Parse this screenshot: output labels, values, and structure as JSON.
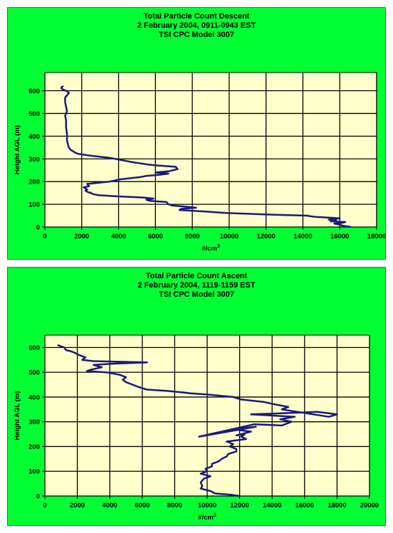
{
  "page": {
    "background": "#ffffff"
  },
  "colors": {
    "panel_bg": "#00ff33",
    "plot_bg": "#ffffcc",
    "grid": "#000000",
    "line": "#1a1a7a"
  },
  "chart_data": [
    {
      "type": "line",
      "title": "Total Particle Count Descent",
      "subtitle1": "2 February 2004, 0911-0943 EST",
      "subtitle2": "TSI CPC Model 3007",
      "xlabel": "#/cm",
      "xlabel_sup": "3",
      "ylabel": "Height AGL (m)",
      "xlim": [
        0,
        18000
      ],
      "ylim": [
        0,
        680
      ],
      "xticks": [
        0,
        2000,
        4000,
        6000,
        8000,
        10000,
        12000,
        14000,
        16000,
        18000
      ],
      "yticks": [
        0,
        100,
        200,
        300,
        400,
        500,
        600
      ],
      "grid": true,
      "series": [
        {
          "x": [
            16600,
            16200,
            16000,
            15700,
            16100,
            16300,
            15500,
            15800,
            15400,
            16000,
            15700,
            14600,
            14200,
            12000,
            9800,
            8700,
            7300,
            7400,
            8200,
            7300,
            6900,
            6700,
            6600,
            5700,
            5500,
            5900,
            5600,
            5300,
            3900,
            2900,
            2600,
            2500,
            2400,
            2300,
            2200,
            2300,
            2200,
            2100,
            2400,
            2300,
            3500,
            4100,
            5200,
            5500,
            6200,
            6700,
            6000,
            6700,
            7200,
            7100,
            6200,
            5600,
            4800,
            3500,
            2400,
            1800,
            1600,
            1400,
            1300,
            1200,
            1200,
            1150,
            1150,
            1100,
            1200,
            1150,
            1100,
            1100,
            1200,
            1300,
            1200,
            1000,
            900,
            900,
            1000
          ],
          "y": [
            0,
            5,
            10,
            15,
            18,
            22,
            25,
            30,
            33,
            38,
            40,
            45,
            50,
            55,
            62,
            68,
            75,
            80,
            85,
            92,
            95,
            100,
            110,
            115,
            120,
            125,
            128,
            130,
            135,
            140,
            145,
            150,
            152,
            155,
            160,
            165,
            170,
            175,
            180,
            190,
            200,
            210,
            220,
            225,
            230,
            235,
            240,
            245,
            255,
            265,
            270,
            275,
            285,
            305,
            315,
            322,
            330,
            340,
            350,
            380,
            410,
            440,
            470,
            490,
            510,
            530,
            550,
            570,
            580,
            590,
            598,
            605,
            610,
            615,
            620
          ]
        }
      ]
    },
    {
      "type": "line",
      "title": "Total Particle Count Ascent",
      "subtitle1": "2 February 2004, 1119-1159 EST",
      "subtitle2": "TSI CPC Model 3007",
      "xlabel": "#/cm",
      "xlabel_sup": "3",
      "ylabel": "Height AGL (m)",
      "xlim": [
        0,
        20000
      ],
      "ylim": [
        0,
        650
      ],
      "xticks": [
        0,
        2000,
        4000,
        6000,
        8000,
        10000,
        12000,
        14000,
        16000,
        18000,
        20000
      ],
      "yticks": [
        0,
        100,
        200,
        300,
        400,
        500,
        600
      ],
      "grid": true,
      "series": [
        {
          "x": [
            12000,
            11500,
            10500,
            10200,
            9600,
            9700,
            9600,
            9800,
            10200,
            9600,
            10000,
            9900,
            10300,
            10300,
            10700,
            10900,
            11200,
            11300,
            11800,
            11800,
            11400,
            11600,
            11200,
            12400,
            12100,
            12300,
            11800,
            12700,
            11600,
            13000,
            9500,
            12900,
            14600,
            15200,
            14500,
            15400,
            12700,
            14900,
            16800,
            18000,
            17500,
            14600,
            15000,
            14200,
            13500,
            12100,
            11600,
            10000,
            9000,
            8300,
            7500,
            6300,
            5800,
            5400,
            5000,
            4800,
            5000,
            4600,
            3800,
            2600,
            2800,
            3500,
            3000,
            4300,
            6300,
            3000,
            2300,
            2500,
            2100,
            1800,
            1600,
            1300,
            1200,
            800
          ],
          "y": [
            0,
            5,
            10,
            20,
            30,
            40,
            55,
            70,
            80,
            90,
            100,
            110,
            120,
            130,
            140,
            150,
            160,
            170,
            180,
            190,
            200,
            210,
            220,
            230,
            240,
            250,
            245,
            260,
            270,
            280,
            240,
            290,
            285,
            300,
            310,
            320,
            330,
            335,
            340,
            330,
            320,
            350,
            360,
            370,
            380,
            390,
            400,
            410,
            415,
            420,
            425,
            430,
            440,
            450,
            460,
            470,
            480,
            490,
            500,
            505,
            510,
            520,
            530,
            535,
            540,
            545,
            550,
            560,
            570,
            580,
            585,
            590,
            600,
            610
          ]
        }
      ]
    }
  ]
}
